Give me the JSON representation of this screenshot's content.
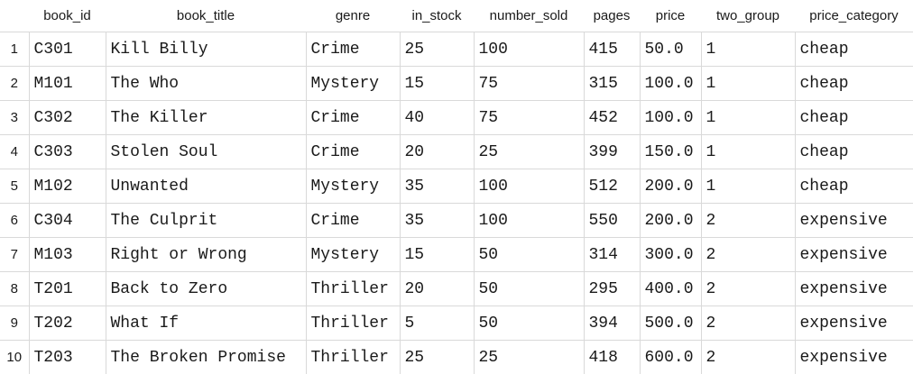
{
  "columns": [
    "book_id",
    "book_title",
    "genre",
    "in_stock",
    "number_sold",
    "pages",
    "price",
    "two_group",
    "price_category"
  ],
  "rows": [
    {
      "num": "1",
      "cells": [
        "C301",
        "Kill Billy",
        "Crime",
        "25",
        "100",
        "415",
        "50.0",
        "1",
        "cheap"
      ]
    },
    {
      "num": "2",
      "cells": [
        "M101",
        "The Who",
        "Mystery",
        "15",
        "75",
        "315",
        "100.0",
        "1",
        "cheap"
      ]
    },
    {
      "num": "3",
      "cells": [
        "C302",
        "The Killer",
        "Crime",
        "40",
        "75",
        "452",
        "100.0",
        "1",
        "cheap"
      ]
    },
    {
      "num": "4",
      "cells": [
        "C303",
        "Stolen Soul",
        "Crime",
        "20",
        "25",
        "399",
        "150.0",
        "1",
        "cheap"
      ]
    },
    {
      "num": "5",
      "cells": [
        "M102",
        "Unwanted",
        "Mystery",
        "35",
        "100",
        "512",
        "200.0",
        "1",
        "cheap"
      ]
    },
    {
      "num": "6",
      "cells": [
        "C304",
        "The Culprit",
        "Crime",
        "35",
        "100",
        "550",
        "200.0",
        "2",
        "expensive"
      ]
    },
    {
      "num": "7",
      "cells": [
        "M103",
        "Right or Wrong",
        "Mystery",
        "15",
        "50",
        "314",
        "300.0",
        "2",
        "expensive"
      ]
    },
    {
      "num": "8",
      "cells": [
        "T201",
        "Back to Zero",
        "Thriller",
        "20",
        "50",
        "295",
        "400.0",
        "2",
        "expensive"
      ]
    },
    {
      "num": "9",
      "cells": [
        "T202",
        "What If",
        "Thriller",
        "5",
        "50",
        "394",
        "500.0",
        "2",
        "expensive"
      ]
    },
    {
      "num": "10",
      "cells": [
        "T203",
        "The Broken Promise",
        "Thriller",
        "25",
        "25",
        "418",
        "600.0",
        "2",
        "expensive"
      ]
    }
  ]
}
